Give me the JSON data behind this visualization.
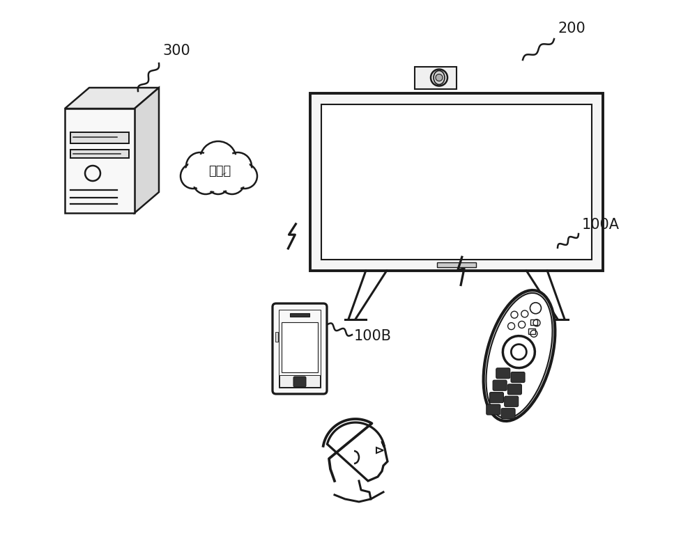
{
  "bg_color": "#ffffff",
  "line_color": "#1a1a1a",
  "label_300": "300",
  "label_200": "200",
  "label_100A": "100A",
  "label_100B": "100B",
  "internet_text": "互联网",
  "figsize": [
    10.0,
    7.96
  ],
  "dpi": 100
}
